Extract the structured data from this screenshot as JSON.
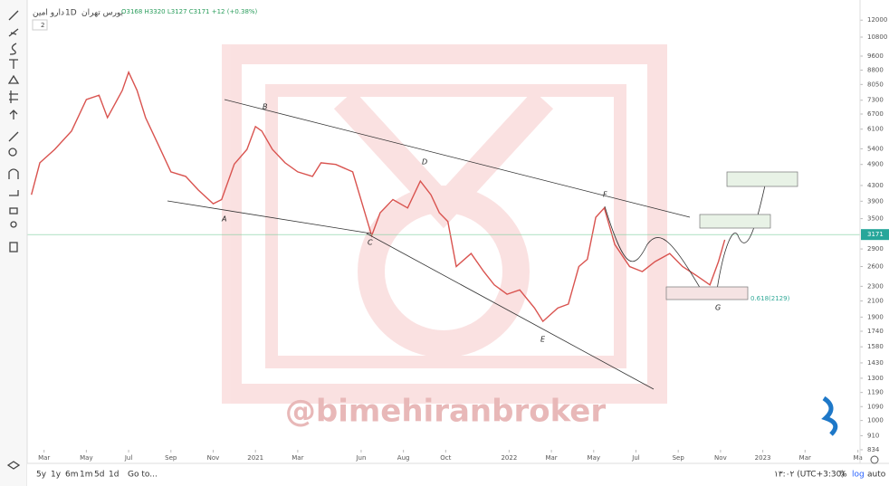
{
  "header": {
    "symbol": "دارو امین",
    "exchange": "بورس تهران",
    "interval": "1D",
    "ohlc": "O3168 H3320 L3127 C3171 +12 (+0.38%)",
    "indicators": "2"
  },
  "chart_data": {
    "type": "line",
    "log_scale": true,
    "series": [
      {
        "name": "دارو امین",
        "color": "#d9534f",
        "x": [
          1.4,
          1.8,
          2.5,
          3.3,
          4.0,
          4.6,
          5.0,
          5.7,
          6.0,
          6.4,
          6.8,
          7.4,
          8.0,
          8.7,
          9.3,
          10.0,
          10.4,
          11.0,
          11.6,
          12.0,
          12.3,
          12.8,
          13.4,
          14.0,
          14.7,
          15.1,
          15.8,
          16.6,
          17.3,
          17.5,
          17.9,
          18.5,
          19.2,
          19.8,
          20.3,
          20.7,
          21.1,
          21.5,
          22.2,
          22.8,
          23.3,
          23.9,
          24.5,
          25.2,
          25.6,
          26.3,
          26.8,
          27.3,
          27.7,
          28.1,
          28.5,
          29.0,
          29.7,
          30.3,
          30.9,
          31.6,
          32.2,
          32.9,
          33.5,
          33.9,
          34.2
        ],
        "values": [
          4060,
          4950,
          5380,
          6030,
          7330,
          7530,
          6550,
          7760,
          8690,
          7760,
          6550,
          5540,
          4680,
          4550,
          4180,
          3840,
          3940,
          4910,
          5380,
          6200,
          6030,
          5380,
          4950,
          4680,
          4550,
          4950,
          4900,
          4680,
          3440,
          3150,
          3630,
          3940,
          3740,
          4420,
          4060,
          3630,
          3440,
          2600,
          2820,
          2520,
          2320,
          2190,
          2250,
          2010,
          1850,
          2010,
          2060,
          2600,
          2720,
          3530,
          3740,
          2980,
          2600,
          2520,
          2680,
          2820,
          2600,
          2450,
          2320,
          2680,
          3070
        ]
      }
    ],
    "last_price": 3171,
    "xlim": [
      1.2,
      40.6
    ],
    "xticks": [
      {
        "value": 2,
        "label": "Mar"
      },
      {
        "value": 4,
        "label": "May"
      },
      {
        "value": 6,
        "label": "Jul"
      },
      {
        "value": 8,
        "label": "Sep"
      },
      {
        "value": 10,
        "label": "Nov"
      },
      {
        "value": 12,
        "label": "2021"
      },
      {
        "value": 14,
        "label": "Mar"
      },
      {
        "value": 17,
        "label": "Jun"
      },
      {
        "value": 19,
        "label": "Aug"
      },
      {
        "value": 21,
        "label": "Oct"
      },
      {
        "value": 24,
        "label": "2022"
      },
      {
        "value": 26,
        "label": "Mar"
      },
      {
        "value": 28,
        "label": "May"
      },
      {
        "value": 30,
        "label": "Jul"
      },
      {
        "value": 32,
        "label": "Sep"
      },
      {
        "value": 34,
        "label": "Nov"
      },
      {
        "value": 36,
        "label": "2023"
      },
      {
        "value": 38,
        "label": "Mar"
      },
      {
        "value": 40.5,
        "label": "Ma"
      }
    ],
    "ylim": [
      775,
      13000
    ],
    "yticks": [
      834,
      910,
      1000,
      1090,
      1190,
      1300,
      1430,
      1580,
      1740,
      1900,
      2100,
      2300,
      2600,
      2900,
      3500,
      3900,
      4300,
      4900,
      5400,
      6100,
      6700,
      7300,
      8050,
      8800,
      9600,
      10800,
      12000
    ],
    "annotations": {
      "points": [
        "A",
        "B",
        "C",
        "D",
        "E",
        "F",
        "G"
      ],
      "fib": "0.618(2129)",
      "watermark": "@bimehiranbroker"
    }
  },
  "toolbar": {
    "ranges": [
      "5y",
      "1y",
      "6m",
      "1m",
      "5d",
      "1d"
    ],
    "goto": "Go to...",
    "time": "۱۳:۰۲ (UTC+3:30)",
    "percent": "%",
    "log": "log",
    "auto": "auto"
  }
}
